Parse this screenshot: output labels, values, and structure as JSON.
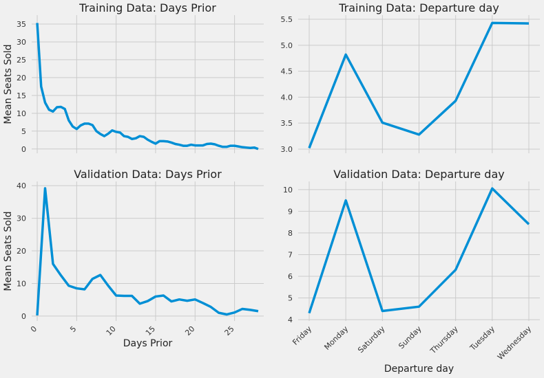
{
  "chart_data": [
    {
      "type": "line",
      "title": "Training Data: Days Prior",
      "y_label": "Mean Seats Sold",
      "grid": true,
      "x": [
        0,
        0.5,
        1,
        1.5,
        2,
        2.5,
        3,
        3.5,
        4,
        4.5,
        5,
        5.5,
        6,
        6.5,
        7,
        7.5,
        8,
        8.5,
        9,
        9.5,
        10,
        10.5,
        11,
        11.5,
        12,
        12.5,
        13,
        13.5,
        14,
        14.5,
        15,
        15.5,
        16,
        16.5,
        17,
        17.5,
        18,
        18.5,
        19,
        19.5,
        20,
        20.5,
        21,
        21.5,
        22,
        22.5,
        23,
        23.5,
        24,
        24.5,
        25,
        25.5,
        26,
        26.5,
        27,
        27.5,
        28
      ],
      "series": [
        {
          "color": "#008fd5",
          "values": [
            35.3,
            17.5,
            13,
            11,
            10.5,
            11.7,
            11.8,
            11.2,
            8,
            6.3,
            5.6,
            6.6,
            7.1,
            7.1,
            6.7,
            5,
            4.2,
            3.6,
            4.3,
            5.2,
            4.8,
            4.6,
            3.6,
            3.4,
            2.8,
            3,
            3.6,
            3.4,
            2.6,
            2,
            1.5,
            2.2,
            2.2,
            2.1,
            1.8,
            1.4,
            1.2,
            0.9,
            0.9,
            1.2,
            1,
            1,
            1,
            1.4,
            1.5,
            1.3,
            0.9,
            0.6,
            0.6,
            0.9,
            0.9,
            0.7,
            0.5,
            0.4,
            0.3,
            0.4,
            0
          ]
        }
      ],
      "xlim": [
        -0.7,
        28.7
      ],
      "xticks": [
        0,
        5,
        10,
        15,
        20,
        25
      ],
      "ylim": [
        -1.2,
        37.5
      ],
      "yticks": [
        0,
        5,
        10,
        15,
        20,
        25,
        30,
        35
      ]
    },
    {
      "type": "line",
      "title": "Training Data: Departure day",
      "grid": true,
      "series": [
        {
          "color": "#008fd5",
          "values": [
            3.02,
            4.82,
            3.51,
            3.28,
            3.93,
            5.43,
            5.42
          ]
        }
      ],
      "ylim": [
        2.92,
        5.58
      ],
      "yticks": [
        {
          "value": 3.0,
          "label": "3.0"
        },
        {
          "value": 3.5,
          "label": "3.5"
        },
        {
          "value": 4.0,
          "label": "4.0"
        },
        {
          "value": 4.5,
          "label": "4.5"
        },
        {
          "value": 5.0,
          "label": "5.0"
        },
        {
          "value": 5.5,
          "label": "5.5"
        }
      ]
    },
    {
      "type": "line",
      "title": "Validation Data: Days Prior",
      "x_label": "Days Prior",
      "y_label": "Mean Seats Sold",
      "grid": true,
      "x": [
        0,
        1,
        2,
        3,
        4,
        5,
        6,
        7,
        8,
        9,
        10,
        11,
        12,
        13,
        14,
        15,
        16,
        17,
        18,
        19,
        20,
        21,
        22,
        23,
        24,
        25,
        26,
        27,
        28
      ],
      "series": [
        {
          "color": "#008fd5",
          "values": [
            0.2,
            39.2,
            16,
            12.5,
            9.3,
            8.5,
            8.2,
            11.4,
            12.6,
            9.3,
            6.3,
            6.2,
            6.2,
            3.8,
            4.6,
            6,
            6.3,
            4.5,
            5.1,
            4.7,
            5.1,
            4,
            2.8,
            1,
            0.5,
            1.1,
            2.2,
            1.9,
            1.5
          ]
        }
      ],
      "xlim": [
        -0.7,
        28.7
      ],
      "xticks": [
        0,
        5,
        10,
        15,
        20,
        25
      ],
      "ylim": [
        -1.5,
        41.3
      ],
      "yticks": [
        0,
        10,
        20,
        30,
        40
      ]
    },
    {
      "type": "line",
      "title": "Validation Data: Departure day",
      "x_label": "Departure day",
      "grid": true,
      "categories": [
        "Friday",
        "Monday",
        "Saturday",
        "Sunday",
        "Thursday",
        "Tuesday",
        "Wednesday"
      ],
      "series": [
        {
          "color": "#008fd5",
          "values": [
            4.3,
            9.5,
            4.4,
            4.6,
            6.3,
            10.05,
            8.4
          ]
        }
      ],
      "ylim": [
        3.94,
        10.375
      ],
      "yticks": [
        4,
        5,
        6,
        7,
        8,
        9,
        10
      ]
    }
  ]
}
